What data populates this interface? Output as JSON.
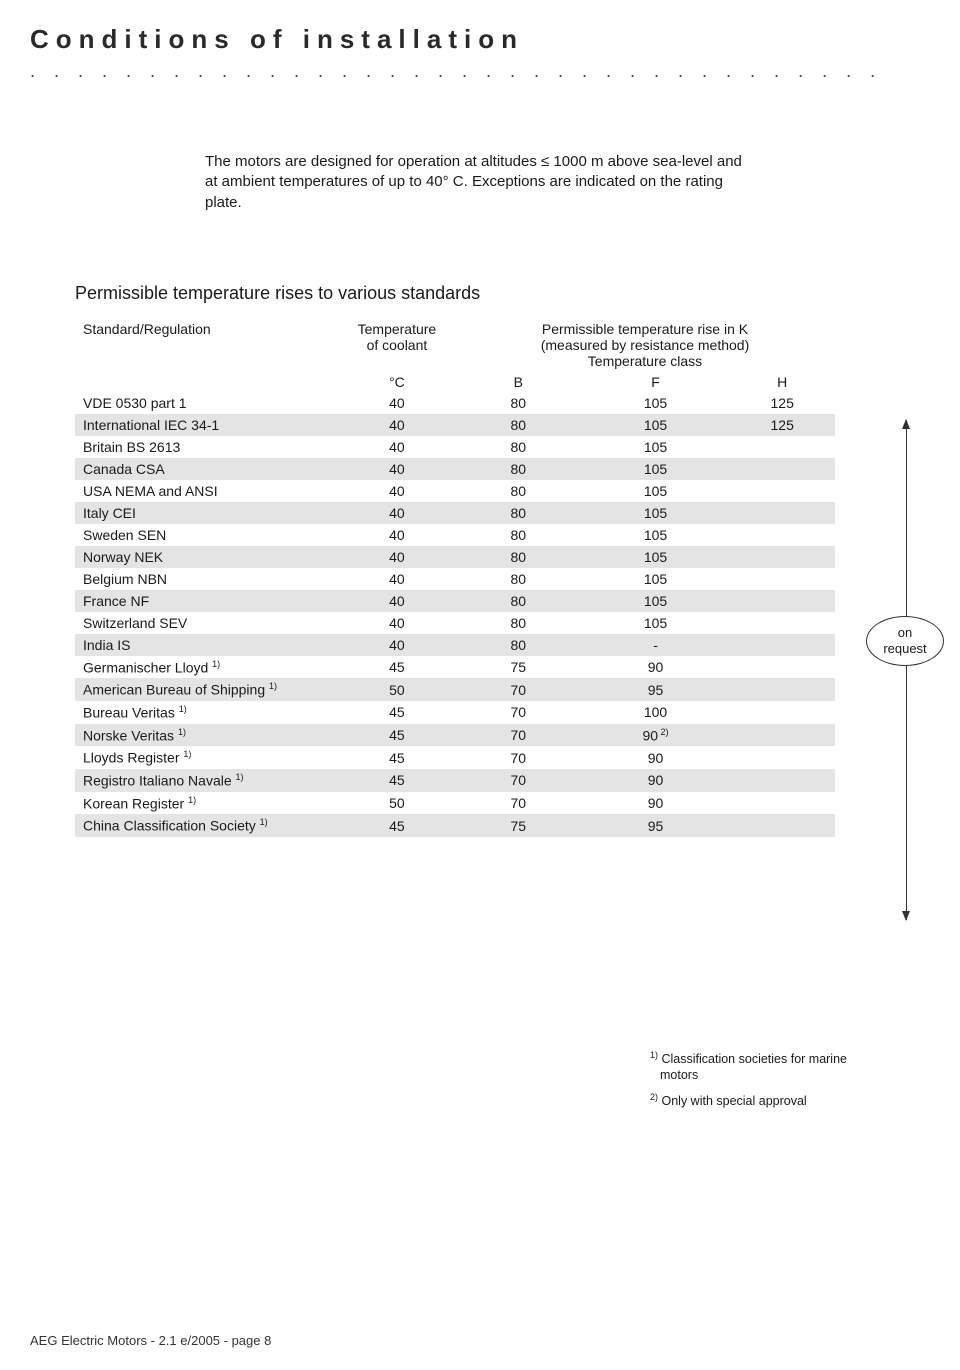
{
  "title": "Conditions of installation",
  "intro": "The motors are designed for operation at altitudes ≤ 1000 m above sea-level and at ambient temperatures of up to 40° C. Exceptions are indicated on the rating plate.",
  "section_title": "Permissible temperature rises to various standards",
  "table": {
    "head": {
      "c0": "Standard/Regulation",
      "c1a": "Temperature",
      "c1b": "of coolant",
      "c2a": "Permissible temperature rise in K",
      "c2b": "(measured by resistance method)",
      "c2c": "Temperature class",
      "unitC": "°C",
      "B": "B",
      "F": "F",
      "H": "H"
    },
    "rows": [
      {
        "std": "VDE 0530 part 1",
        "sup": "",
        "t": "40",
        "b": "80",
        "f": "105",
        "h": "125"
      },
      {
        "std": "International IEC 34-1",
        "sup": "",
        "t": "40",
        "b": "80",
        "f": "105",
        "h": "125"
      },
      {
        "std": "Britain BS 2613",
        "sup": "",
        "t": "40",
        "b": "80",
        "f": "105",
        "h": ""
      },
      {
        "std": "Canada CSA",
        "sup": "",
        "t": "40",
        "b": "80",
        "f": "105",
        "h": ""
      },
      {
        "std": "USA NEMA and ANSI",
        "sup": "",
        "t": "40",
        "b": "80",
        "f": "105",
        "h": ""
      },
      {
        "std": "Italy CEI",
        "sup": "",
        "t": "40",
        "b": "80",
        "f": "105",
        "h": ""
      },
      {
        "std": "Sweden SEN",
        "sup": "",
        "t": "40",
        "b": "80",
        "f": "105",
        "h": ""
      },
      {
        "std": "Norway NEK",
        "sup": "",
        "t": "40",
        "b": "80",
        "f": "105",
        "h": ""
      },
      {
        "std": "Belgium NBN",
        "sup": "",
        "t": "40",
        "b": "80",
        "f": "105",
        "h": ""
      },
      {
        "std": "France NF",
        "sup": "",
        "t": "40",
        "b": "80",
        "f": "105",
        "h": ""
      },
      {
        "std": "Switzerland SEV",
        "sup": "",
        "t": "40",
        "b": "80",
        "f": "105",
        "h": ""
      },
      {
        "std": "India IS",
        "sup": "",
        "t": "40",
        "b": "80",
        "f": "-",
        "h": ""
      },
      {
        "std": "Germanischer Lloyd",
        "sup": "1)",
        "t": "45",
        "b": "75",
        "f": "90",
        "h": ""
      },
      {
        "std": "American Bureau of Shipping",
        "sup": "1)",
        "t": "50",
        "b": "70",
        "f": "95",
        "h": ""
      },
      {
        "std": "Bureau Veritas",
        "sup": "1)",
        "t": "45",
        "b": "70",
        "f": "100",
        "h": ""
      },
      {
        "std": "Norske Veritas",
        "sup": "1)",
        "t": "45",
        "b": "70",
        "f": "90",
        "h": "",
        "fsup": "2)"
      },
      {
        "std": "Lloyds Register",
        "sup": "1)",
        "t": "45",
        "b": "70",
        "f": "90",
        "h": ""
      },
      {
        "std": "Registro Italiano Navale",
        "sup": "1)",
        "t": "45",
        "b": "70",
        "f": "90",
        "h": ""
      },
      {
        "std": "Korean Register",
        "sup": "1)",
        "t": "50",
        "b": "70",
        "f": "90",
        "h": ""
      },
      {
        "std": "China Classification Society",
        "sup": "1)",
        "t": "45",
        "b": "75",
        "f": "95",
        "h": ""
      }
    ]
  },
  "bubble_line1": "on",
  "bubble_line2": "request",
  "footnote1": "Classification societies for marine motors",
  "footnote1_sup": "1)",
  "footnote2": "Only with special approval",
  "footnote2_sup": "2)",
  "footer": "AEG Electric Motors - 2.1 e/2005 - page 8",
  "colors": {
    "row_alt": "#e4e4e4",
    "text": "#1a1a1a",
    "bg": "#ffffff"
  }
}
